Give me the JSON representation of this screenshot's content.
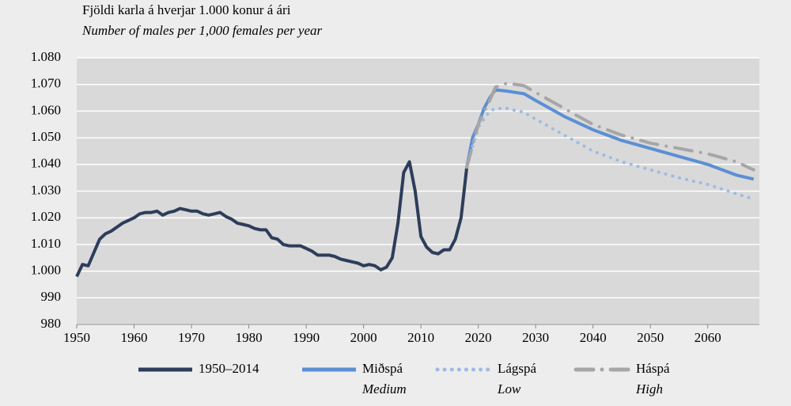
{
  "chart_data": {
    "type": "line",
    "title": "Fjöldi karla á hverjar 1.000 konur á ári",
    "subtitle": "Number of males per 1,000 females per year",
    "xlim": [
      1950,
      2069
    ],
    "xticks": [
      1950,
      1960,
      1970,
      1980,
      1990,
      2000,
      2010,
      2020,
      2030,
      2040,
      2050,
      2060
    ],
    "ylim": [
      980,
      1080
    ],
    "yticks": [
      980,
      990,
      {
        "value": 1000,
        "label": "1.000"
      },
      {
        "value": 1010,
        "label": "1.010"
      },
      {
        "value": 1020,
        "label": "1.020"
      },
      {
        "value": 1030,
        "label": "1.030"
      },
      {
        "value": 1040,
        "label": "1.040"
      },
      {
        "value": 1050,
        "label": "1.050"
      },
      {
        "value": 1060,
        "label": "1.060"
      },
      {
        "value": 1070,
        "label": "1.070"
      },
      {
        "value": 1080,
        "label": "1.080"
      }
    ],
    "grid": true,
    "legend": "bottom",
    "series": [
      {
        "name": "1950–2014",
        "color": "#2d3d5b",
        "style": "solid",
        "x": [
          1950,
          1951,
          1952,
          1953,
          1954,
          1955,
          1956,
          1957,
          1958,
          1959,
          1960,
          1961,
          1962,
          1963,
          1964,
          1965,
          1966,
          1967,
          1968,
          1969,
          1970,
          1971,
          1972,
          1973,
          1974,
          1975,
          1976,
          1977,
          1978,
          1979,
          1980,
          1981,
          1982,
          1983,
          1984,
          1985,
          1986,
          1987,
          1988,
          1989,
          1990,
          1991,
          1992,
          1993,
          1994,
          1995,
          1996,
          1997,
          1998,
          1999,
          2000,
          2001,
          2002,
          2003,
          2004,
          2005,
          2006,
          2007,
          2008,
          2009,
          2010,
          2011,
          2012,
          2013,
          2014,
          2015,
          2016,
          2017,
          2018
        ],
        "values": [
          998,
          1002.5,
          1002,
          1007,
          1012,
          1014,
          1015,
          1016.5,
          1018,
          1019,
          1020,
          1021.5,
          1022,
          1022,
          1022.5,
          1021,
          1022,
          1022.5,
          1023.5,
          1023,
          1022.5,
          1022.5,
          1021.5,
          1021,
          1021.5,
          1022,
          1020.5,
          1019.5,
          1018,
          1017.5,
          1017,
          1016,
          1015.5,
          1015.5,
          1012.5,
          1012,
          1010,
          1009.5,
          1009.5,
          1009.5,
          1008.5,
          1007.5,
          1006,
          1006,
          1006,
          1005.5,
          1004.5,
          1004,
          1003.5,
          1003,
          1002,
          1002.5,
          1002,
          1000.5,
          1001.5,
          1005,
          1018,
          1037,
          1041,
          1030,
          1013,
          1009,
          1007,
          1006.5,
          1008,
          1008,
          1012,
          1020,
          1039
        ]
      },
      {
        "name": "Miðspá",
        "subname": "Medium",
        "color": "#5b8fd4",
        "style": "solid",
        "x": [
          2018,
          2019,
          2020,
          2021,
          2022,
          2023,
          2025,
          2028,
          2030,
          2035,
          2040,
          2045,
          2050,
          2055,
          2060,
          2065,
          2068
        ],
        "values": [
          1039,
          1050,
          1055,
          1061,
          1065,
          1068,
          1067.5,
          1066.5,
          1064,
          1058,
          1053,
          1049,
          1046,
          1043,
          1040,
          1036,
          1034.5
        ]
      },
      {
        "name": "Lágspá",
        "subname": "Low",
        "color": "#9dbbe3",
        "style": "dotted",
        "x": [
          2018,
          2020,
          2022,
          2023,
          2025,
          2028,
          2030,
          2035,
          2040,
          2045,
          2050,
          2055,
          2060,
          2065,
          2068
        ],
        "values": [
          1039,
          1054,
          1060,
          1061,
          1061,
          1059.5,
          1057,
          1051,
          1045,
          1041,
          1038,
          1035,
          1032.5,
          1029,
          1027
        ]
      },
      {
        "name": "Háspá",
        "subname": "High",
        "color": "#a6a6a6",
        "style": "dashdot",
        "x": [
          2018,
          2020,
          2022,
          2023,
          2025,
          2028,
          2030,
          2035,
          2040,
          2045,
          2050,
          2055,
          2060,
          2065,
          2068
        ],
        "values": [
          1039,
          1055,
          1064,
          1069,
          1070.5,
          1069.5,
          1067,
          1061,
          1055,
          1051,
          1048,
          1046,
          1044,
          1041,
          1038
        ]
      }
    ]
  }
}
